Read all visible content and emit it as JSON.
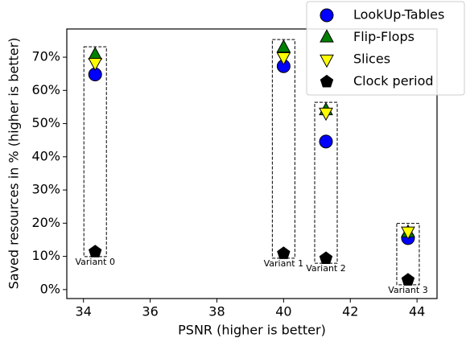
{
  "chart_data": {
    "type": "scatter",
    "x_label": "PSNR (higher is better)",
    "y_label": "Saved resources in % (higher is better)",
    "x": [
      34.35,
      40.0,
      41.27,
      43.73
    ],
    "series": [
      {
        "name": "LookUp-Tables",
        "color": "#0000ff",
        "marker": "circle",
        "values": [
          64.8,
          67.3,
          44.6,
          15.5
        ]
      },
      {
        "name": "Flip-Flops",
        "color": "#008000",
        "marker": "triangle-up",
        "values": [
          70.7,
          72.9,
          54.0,
          17.2
        ]
      },
      {
        "name": "Slices",
        "color": "#ffff00",
        "marker": "triangle-down",
        "values": [
          68.3,
          70.0,
          53.3,
          17.5
        ]
      },
      {
        "name": "Clock period",
        "color": "#000000",
        "marker": "pentagon",
        "values": [
          11.4,
          10.9,
          9.4,
          2.9
        ]
      }
    ],
    "annotations": [
      "Variant 0",
      "Variant 1",
      "Variant 2",
      "Variant 3"
    ],
    "xlim": [
      33.5,
      44.6
    ],
    "ylim": [
      -2.7,
      78.5
    ],
    "xticks": [
      34,
      36,
      38,
      40,
      42,
      44
    ],
    "yticks": [
      {
        "value": 0,
        "label": "0%"
      },
      {
        "value": 10,
        "label": "10%"
      },
      {
        "value": 20,
        "label": "20%"
      },
      {
        "value": 30,
        "label": "30%"
      },
      {
        "value": 40,
        "label": "40%"
      },
      {
        "value": 50,
        "label": "50%"
      },
      {
        "value": 60,
        "label": "60%"
      },
      {
        "value": 70,
        "label": "70%"
      }
    ],
    "legend": "upper right"
  }
}
